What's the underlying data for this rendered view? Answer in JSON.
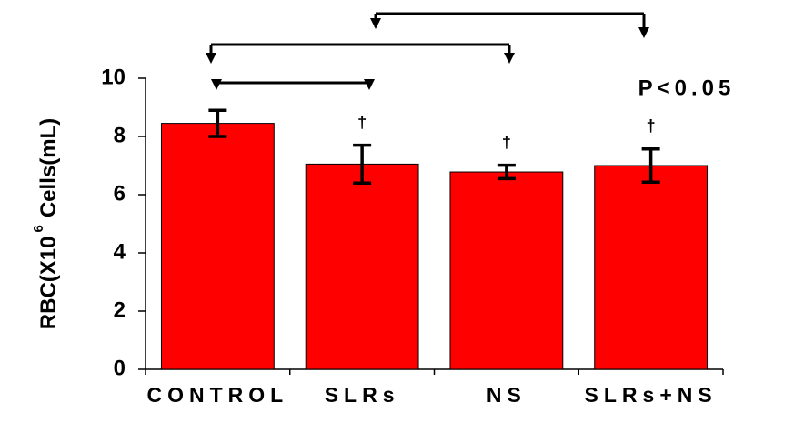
{
  "chart_data": {
    "type": "bar",
    "y_label": [
      "RBC(X10",
      "6",
      "Cells(mL)"
    ],
    "categories": [
      "CONTROL",
      "SLRs",
      "NS",
      "SLRs+NS"
    ],
    "values": [
      8.45,
      7.05,
      6.78,
      7.0
    ],
    "errors": [
      0.45,
      0.65,
      0.23,
      0.57
    ],
    "color": "#ff0000",
    "ylim": [
      0,
      10
    ],
    "yticks": [
      0,
      2,
      4,
      6,
      8,
      10
    ],
    "annotations": [
      "P<0.05",
      "†",
      "†",
      "†"
    ]
  }
}
